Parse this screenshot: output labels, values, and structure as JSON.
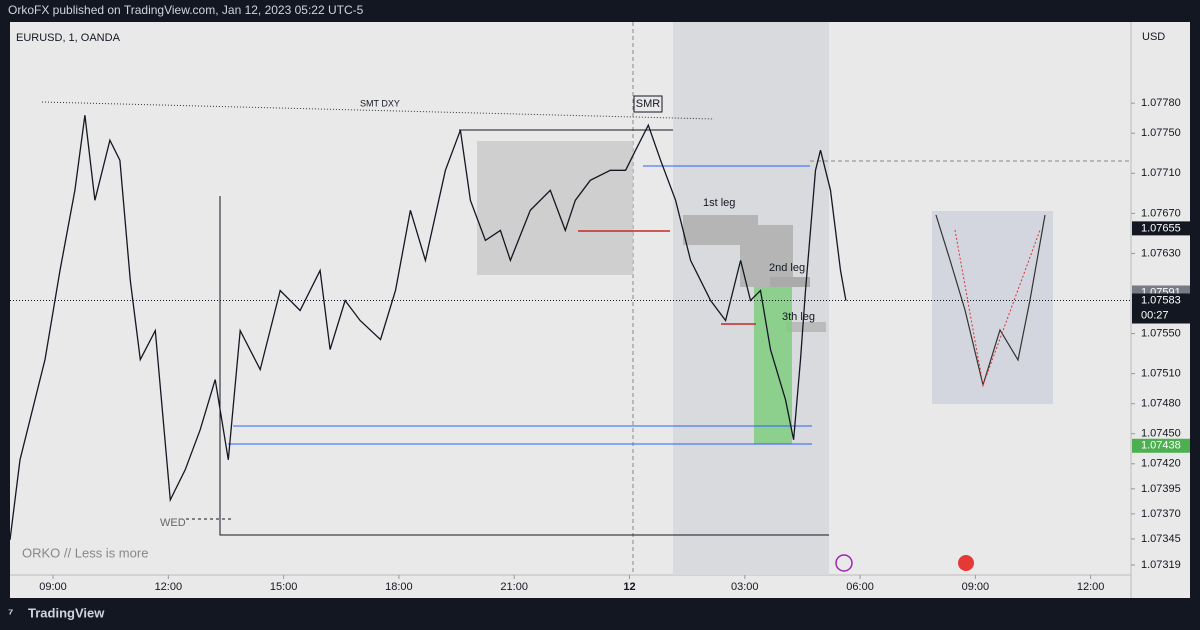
{
  "header": "OrkoFX published on TradingView.com, Jan 12, 2023 05:22 UTC-5",
  "footer": "TradingView",
  "chart_data": {
    "type": "line",
    "title": "EURUSD, 1, OANDA",
    "y_axis_label": "USD",
    "watermark": "ORKO // Less is more",
    "annotations": [
      "SMT DXY",
      "SMR",
      "1st leg",
      "2nd leg",
      "3th leg",
      "WED"
    ],
    "color": "#131722",
    "x": [
      7.88,
      8.14,
      8.79,
      9.18,
      9.57,
      9.83,
      10.09,
      10.48,
      10.74,
      11.01,
      11.27,
      11.66,
      12.05,
      12.44,
      12.83,
      13.22,
      13.56,
      13.87,
      14.39,
      14.91,
      15.43,
      15.95,
      16.21,
      16.6,
      16.99,
      17.52,
      17.91,
      18.3,
      18.69,
      19.21,
      19.6,
      19.86,
      20.25,
      20.64,
      20.9,
      21.42,
      21.94,
      22.33,
      22.59,
      22.98,
      23.5,
      23.9,
      24.16,
      24.49,
      24.81,
      25.2,
      25.59,
      26.11,
      26.5,
      26.89,
      27.15,
      27.41,
      27.67,
      28.06,
      28.27,
      28.45,
      28.58,
      28.84,
      28.97,
      29.23,
      29.49,
      29.63
    ],
    "values": [
      1.07344,
      1.07424,
      1.07524,
      1.07613,
      1.07693,
      1.07768,
      1.07683,
      1.07743,
      1.07723,
      1.07603,
      1.07524,
      1.07553,
      1.07384,
      1.07414,
      1.07454,
      1.07504,
      1.07424,
      1.07553,
      1.07514,
      1.07593,
      1.07573,
      1.07613,
      1.07534,
      1.07583,
      1.07563,
      1.07544,
      1.07593,
      1.07673,
      1.07623,
      1.07713,
      1.07753,
      1.07683,
      1.07643,
      1.07653,
      1.07623,
      1.07673,
      1.07693,
      1.07653,
      1.07683,
      1.07703,
      1.07713,
      1.07713,
      1.07733,
      1.07758,
      1.07723,
      1.07683,
      1.07623,
      1.07583,
      1.07563,
      1.07623,
      1.07583,
      1.07593,
      1.07534,
      1.07484,
      1.07444,
      1.07524,
      1.07593,
      1.07713,
      1.07733,
      1.07693,
      1.07613,
      1.07583
    ],
    "xlim": [
      7.88,
      37.05
    ],
    "ylim": [
      1.07309,
      1.07861
    ],
    "xticks": [
      {
        "value": 9,
        "label": "09:00"
      },
      {
        "value": 12,
        "label": "12:00"
      },
      {
        "value": 15,
        "label": "15:00"
      },
      {
        "value": 18,
        "label": "18:00"
      },
      {
        "value": 21,
        "label": "21:00"
      },
      {
        "value": 24,
        "label": "12"
      },
      {
        "value": 27,
        "label": "03:00"
      },
      {
        "value": 30,
        "label": "06:00"
      },
      {
        "value": 33,
        "label": "09:00"
      },
      {
        "value": 36,
        "label": "12:00"
      }
    ],
    "yticks": [
      {
        "value": 1.0778,
        "label": "1.07780"
      },
      {
        "value": 1.0775,
        "label": "1.07750"
      },
      {
        "value": 1.0771,
        "label": "1.07710"
      },
      {
        "value": 1.0767,
        "label": "1.07670"
      },
      {
        "value": 1.0763,
        "label": "1.07630"
      },
      {
        "value": 1.0755,
        "label": "1.07550"
      },
      {
        "value": 1.0751,
        "label": "1.07510"
      },
      {
        "value": 1.0748,
        "label": "1.07480"
      },
      {
        "value": 1.0745,
        "label": "1.07450"
      },
      {
        "value": 1.0742,
        "label": "1.07420"
      },
      {
        "value": 1.07395,
        "label": "1.07395"
      },
      {
        "value": 1.0737,
        "label": "1.07370"
      },
      {
        "value": 1.07345,
        "label": "1.07345"
      },
      {
        "value": 1.07319,
        "label": "1.07319"
      }
    ],
    "price_badges": [
      {
        "value": 1.07655,
        "color": "#131722"
      },
      {
        "value": 1.07591,
        "color": "#787b86"
      },
      {
        "value": 1.07583,
        "color": "#131722"
      },
      {
        "value": 1.07438,
        "color": "#4caf50"
      }
    ],
    "countdown": "00:27",
    "grid": false
  }
}
